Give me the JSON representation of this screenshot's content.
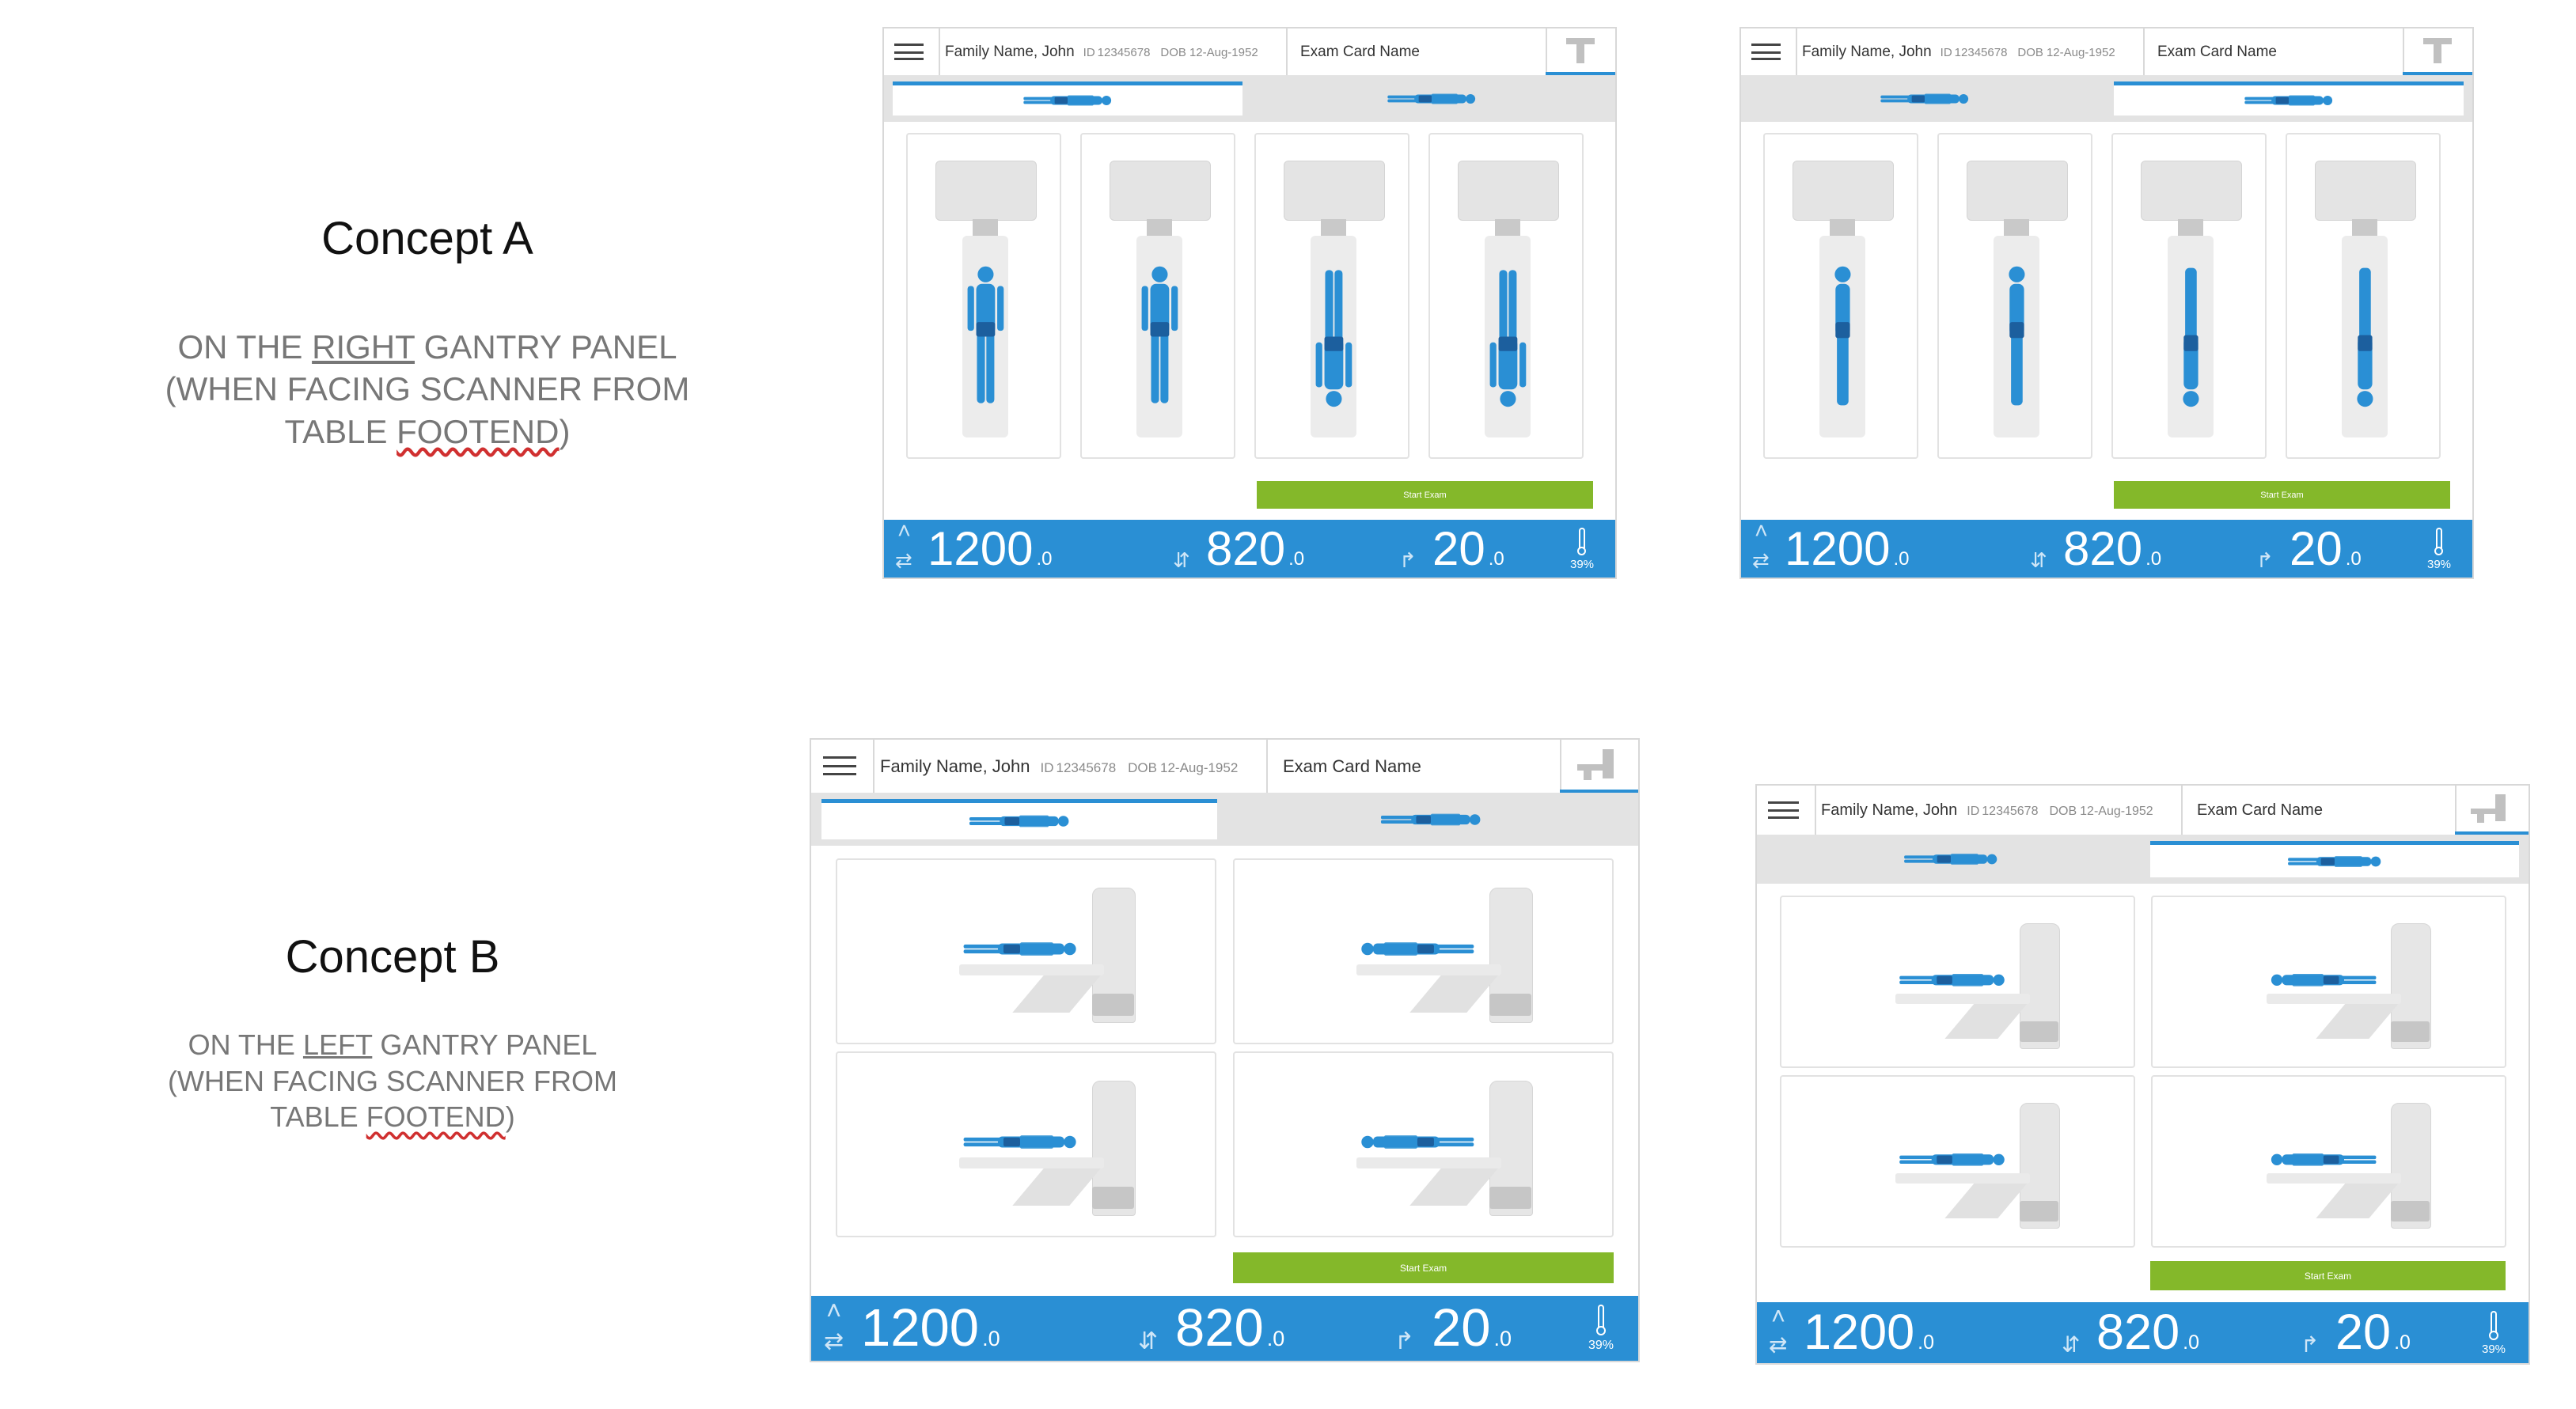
{
  "concepts": [
    {
      "title": "Concept A",
      "desc_lines": [
        [
          "ON THE ",
          "RIGHT",
          " GANTRY PANEL"
        ],
        [
          "(WHEN FACING SCANNER FROM",
          "",
          " "
        ],
        [
          "TABLE ",
          "FOOTEND",
          ")"
        ]
      ]
    },
    {
      "title": "Concept B",
      "desc_lines": [
        [
          "ON THE ",
          "LEFT",
          " GANTRY PANEL"
        ],
        [
          "(WHEN FACING SCANNER FROM",
          "",
          " "
        ],
        [
          "TABLE ",
          "FOOTEND",
          ")"
        ]
      ]
    }
  ],
  "patient": {
    "name": "Family Name, John",
    "id_label": "ID",
    "id": "12345678",
    "dob_label": "DOB",
    "dob": "12-Aug-1952"
  },
  "exam_card_name": "Exam Card Name",
  "start_exam": "Start Exam",
  "status": {
    "pos1": "1200",
    "pos1_dec": ".0",
    "pos2": "820",
    "pos2_dec": ".0",
    "pos3": "20",
    "pos3_dec": ".0",
    "temperature": "39%"
  },
  "icons": {
    "menu": "hamburger-menu-icon",
    "table": "table-position-icon",
    "temp": "thermometer-icon",
    "up_arrow": "chevron-up-icon",
    "horizontal": "horizontal-position-icon",
    "vertical": "vertical-position-icon",
    "angle": "angle-icon"
  },
  "colors": {
    "accent": "#2a8fd4",
    "start_btn": "#84b82a",
    "body": "#2a8fd4",
    "tab_bg": "#e3e3e3"
  },
  "panels": [
    {
      "id": "a1",
      "concept": "A",
      "active_tab": 0
    },
    {
      "id": "a2",
      "concept": "A",
      "active_tab": 1
    },
    {
      "id": "b1",
      "concept": "B",
      "active_tab": 0
    },
    {
      "id": "b2",
      "concept": "B",
      "active_tab": 1
    }
  ]
}
